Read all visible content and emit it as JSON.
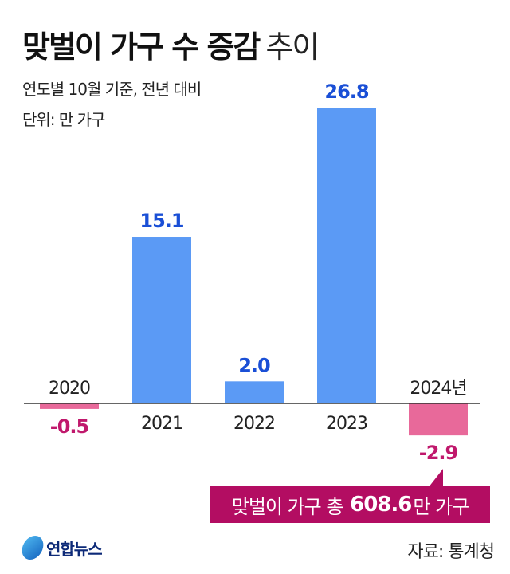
{
  "header": {
    "title_bold": "맞벌이 가구 수 증감",
    "title_light": "추이",
    "subtitle": "연도별 10월 기준, 전년 대비",
    "unit": "단위: 만 가구"
  },
  "chart_data": {
    "type": "bar",
    "title": "맞벌이 가구 수 증감 추이",
    "categories": [
      "2020",
      "2021",
      "2022",
      "2023",
      "2024년"
    ],
    "values": [
      -0.5,
      15.1,
      2.0,
      26.8,
      -2.9
    ],
    "value_labels": [
      "-0.5",
      "15.1",
      "2.0",
      "26.8",
      "-2.9"
    ],
    "ylabel": "만 가구",
    "ylim": [
      -3,
      27
    ],
    "grid": false,
    "colors": {
      "positive": "#5b9af5",
      "negative": "#e8699a",
      "positive_label": "#1a4fd6",
      "negative_label": "#c0186c",
      "axis": "#333333"
    }
  },
  "callout": {
    "prefix": "맞벌이 가구 총",
    "value": "608.6",
    "suffix": "만 가구"
  },
  "footer": {
    "logo": "연합뉴스",
    "source": "자료: 통계청"
  }
}
